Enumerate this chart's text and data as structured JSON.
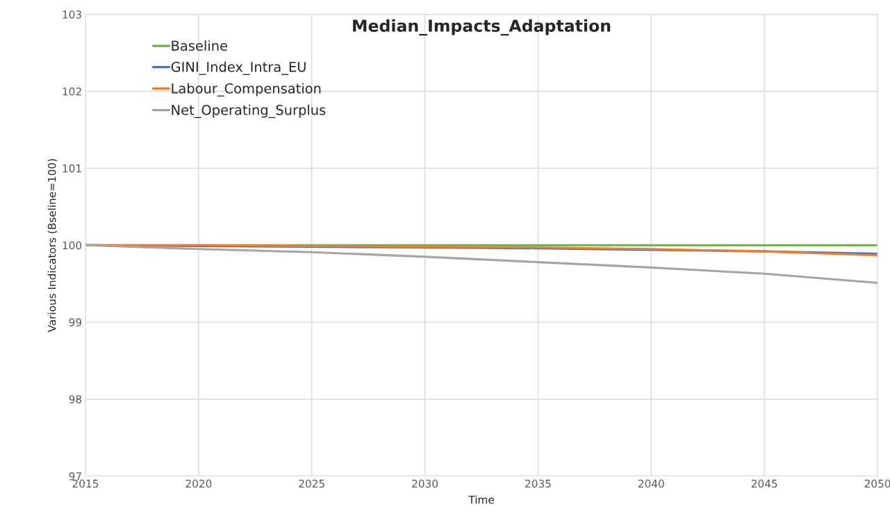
{
  "chart_data": {
    "type": "line",
    "title": "Median_Impacts_Adaptation",
    "xlabel": "Time",
    "ylabel": "Various Indicators (Bseline=100)",
    "x": [
      2015,
      2020,
      2025,
      2030,
      2035,
      2040,
      2045,
      2050
    ],
    "series": [
      {
        "name": "Baseline",
        "color": "#70ad47",
        "values": [
          100,
          100,
          100,
          100,
          100,
          100,
          100,
          100
        ]
      },
      {
        "name": "GINI_Index_Intra_EU",
        "color": "#4472c4",
        "values": [
          100,
          99.99,
          99.98,
          99.97,
          99.96,
          99.94,
          99.92,
          99.89
        ]
      },
      {
        "name": "Labour_Compensation",
        "color": "#ed7d31",
        "values": [
          100,
          100,
          99.99,
          99.98,
          99.97,
          99.95,
          99.92,
          99.87
        ]
      },
      {
        "name": "Net_Operating_Surplus",
        "color": "#a5a5a5",
        "values": [
          100,
          99.95,
          99.91,
          99.85,
          99.78,
          99.71,
          99.63,
          99.51
        ]
      }
    ],
    "xlim": [
      2015,
      2050
    ],
    "xticks": [
      2015,
      2020,
      2025,
      2030,
      2035,
      2040,
      2045,
      2050
    ],
    "ylim": [
      97,
      103
    ],
    "yticks": [
      97,
      98,
      99,
      100,
      101,
      102,
      103
    ],
    "grid": true,
    "legend": "top left",
    "marker": "none",
    "line_style": "solid"
  }
}
